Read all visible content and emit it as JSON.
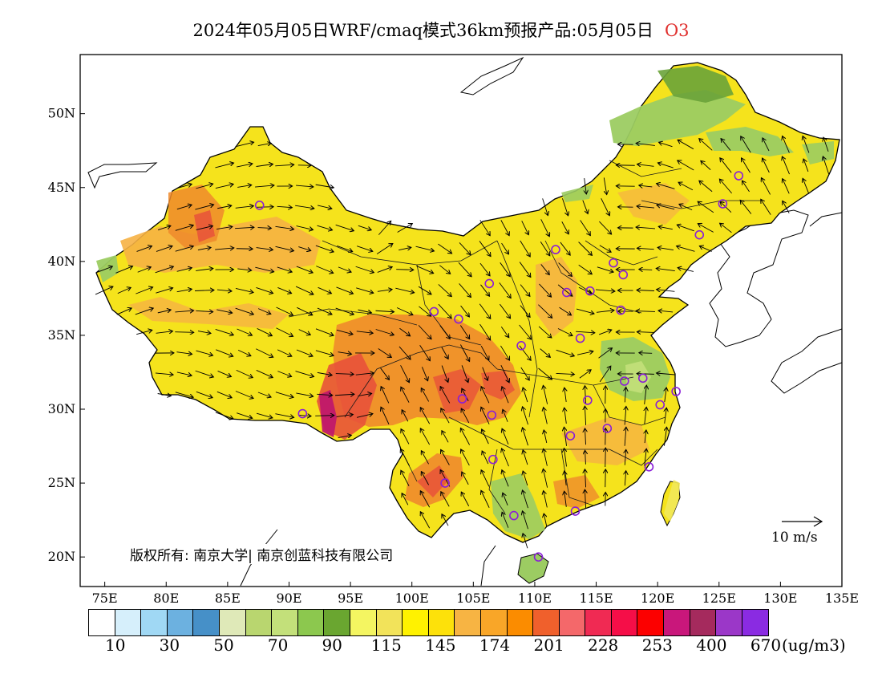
{
  "title": {
    "main": "2024年05月05日WRF/cmaq模式36km预报产品:05月05日",
    "species": "O3",
    "species_color": "#e0302e"
  },
  "map": {
    "lon_range": [
      73,
      135
    ],
    "lat_range": [
      18,
      54
    ],
    "x_ticks": [
      {
        "lon": 75,
        "label": "75E"
      },
      {
        "lon": 80,
        "label": "80E"
      },
      {
        "lon": 85,
        "label": "85E"
      },
      {
        "lon": 90,
        "label": "90E"
      },
      {
        "lon": 95,
        "label": "95E"
      },
      {
        "lon": 100,
        "label": "100E"
      },
      {
        "lon": 105,
        "label": "105E"
      },
      {
        "lon": 110,
        "label": "110E"
      },
      {
        "lon": 115,
        "label": "115E"
      },
      {
        "lon": 120,
        "label": "120E"
      },
      {
        "lon": 125,
        "label": "125E"
      },
      {
        "lon": 130,
        "label": "130E"
      },
      {
        "lon": 135,
        "label": "135E"
      }
    ],
    "y_ticks": [
      {
        "lat": 20,
        "label": "20N"
      },
      {
        "lat": 25,
        "label": "25N"
      },
      {
        "lat": 30,
        "label": "30N"
      },
      {
        "lat": 35,
        "label": "35N"
      },
      {
        "lat": 40,
        "label": "40N"
      },
      {
        "lat": 45,
        "label": "45N"
      },
      {
        "lat": 50,
        "label": "50N"
      }
    ],
    "fill_colors": {
      "base": "#f5e31c",
      "light_yellow": "#f2e85a",
      "orange": "#f6b144",
      "deep_orange": "#ef8a2c",
      "red": "#e8523a",
      "magenta": "#c0186b",
      "green": "#9ccc62",
      "dark_green": "#6aa33a",
      "sea": "#ffffff"
    },
    "stations": [
      {
        "lon": 87.6,
        "lat": 43.8
      },
      {
        "lon": 91.1,
        "lat": 29.7
      },
      {
        "lon": 101.8,
        "lat": 36.6
      },
      {
        "lon": 103.8,
        "lat": 36.1
      },
      {
        "lon": 106.3,
        "lat": 38.5
      },
      {
        "lon": 104.1,
        "lat": 30.7
      },
      {
        "lon": 102.7,
        "lat": 25.0
      },
      {
        "lon": 106.6,
        "lat": 26.6
      },
      {
        "lon": 106.5,
        "lat": 29.6
      },
      {
        "lon": 108.9,
        "lat": 34.3
      },
      {
        "lon": 111.7,
        "lat": 40.8
      },
      {
        "lon": 112.6,
        "lat": 37.9
      },
      {
        "lon": 114.5,
        "lat": 38.0
      },
      {
        "lon": 116.4,
        "lat": 39.9
      },
      {
        "lon": 117.2,
        "lat": 39.1
      },
      {
        "lon": 113.7,
        "lat": 34.8
      },
      {
        "lon": 117.0,
        "lat": 36.7
      },
      {
        "lon": 117.3,
        "lat": 31.9
      },
      {
        "lon": 118.8,
        "lat": 32.1
      },
      {
        "lon": 121.5,
        "lat": 31.2
      },
      {
        "lon": 120.2,
        "lat": 30.3
      },
      {
        "lon": 114.3,
        "lat": 30.6
      },
      {
        "lon": 112.9,
        "lat": 28.2
      },
      {
        "lon": 115.9,
        "lat": 28.7
      },
      {
        "lon": 119.3,
        "lat": 26.1
      },
      {
        "lon": 113.3,
        "lat": 23.1
      },
      {
        "lon": 108.3,
        "lat": 22.8
      },
      {
        "lon": 110.3,
        "lat": 20.0
      },
      {
        "lon": 123.4,
        "lat": 41.8
      },
      {
        "lon": 125.3,
        "lat": 43.9
      },
      {
        "lon": 126.6,
        "lat": 45.8
      }
    ]
  },
  "copyright": "版权所有: 南京大学| 南京创蓝科技有限公司",
  "wind_scale_label": "10 m/s",
  "colorbar": {
    "colors": [
      "#ffffff",
      "#d6effb",
      "#a0d8f4",
      "#6cb1e0",
      "#4690c8",
      "#dfe9b8",
      "#b9d66f",
      "#c3e07a",
      "#8cc84e",
      "#6aa630",
      "#f4f561",
      "#f2e35a",
      "#fff200",
      "#fde10a",
      "#f7b443",
      "#f9a628",
      "#fb8c00",
      "#f0602c",
      "#f4686a",
      "#f02a53",
      "#f50e48",
      "#fc0000",
      "#c9177b",
      "#a52a5d",
      "#9b37c8",
      "#8a2be2"
    ],
    "labels": [
      "10",
      "30",
      "50",
      "70",
      "90",
      "115",
      "145",
      "174",
      "201",
      "228",
      "253",
      "400",
      "670"
    ],
    "unit": "(ug/m3)"
  }
}
